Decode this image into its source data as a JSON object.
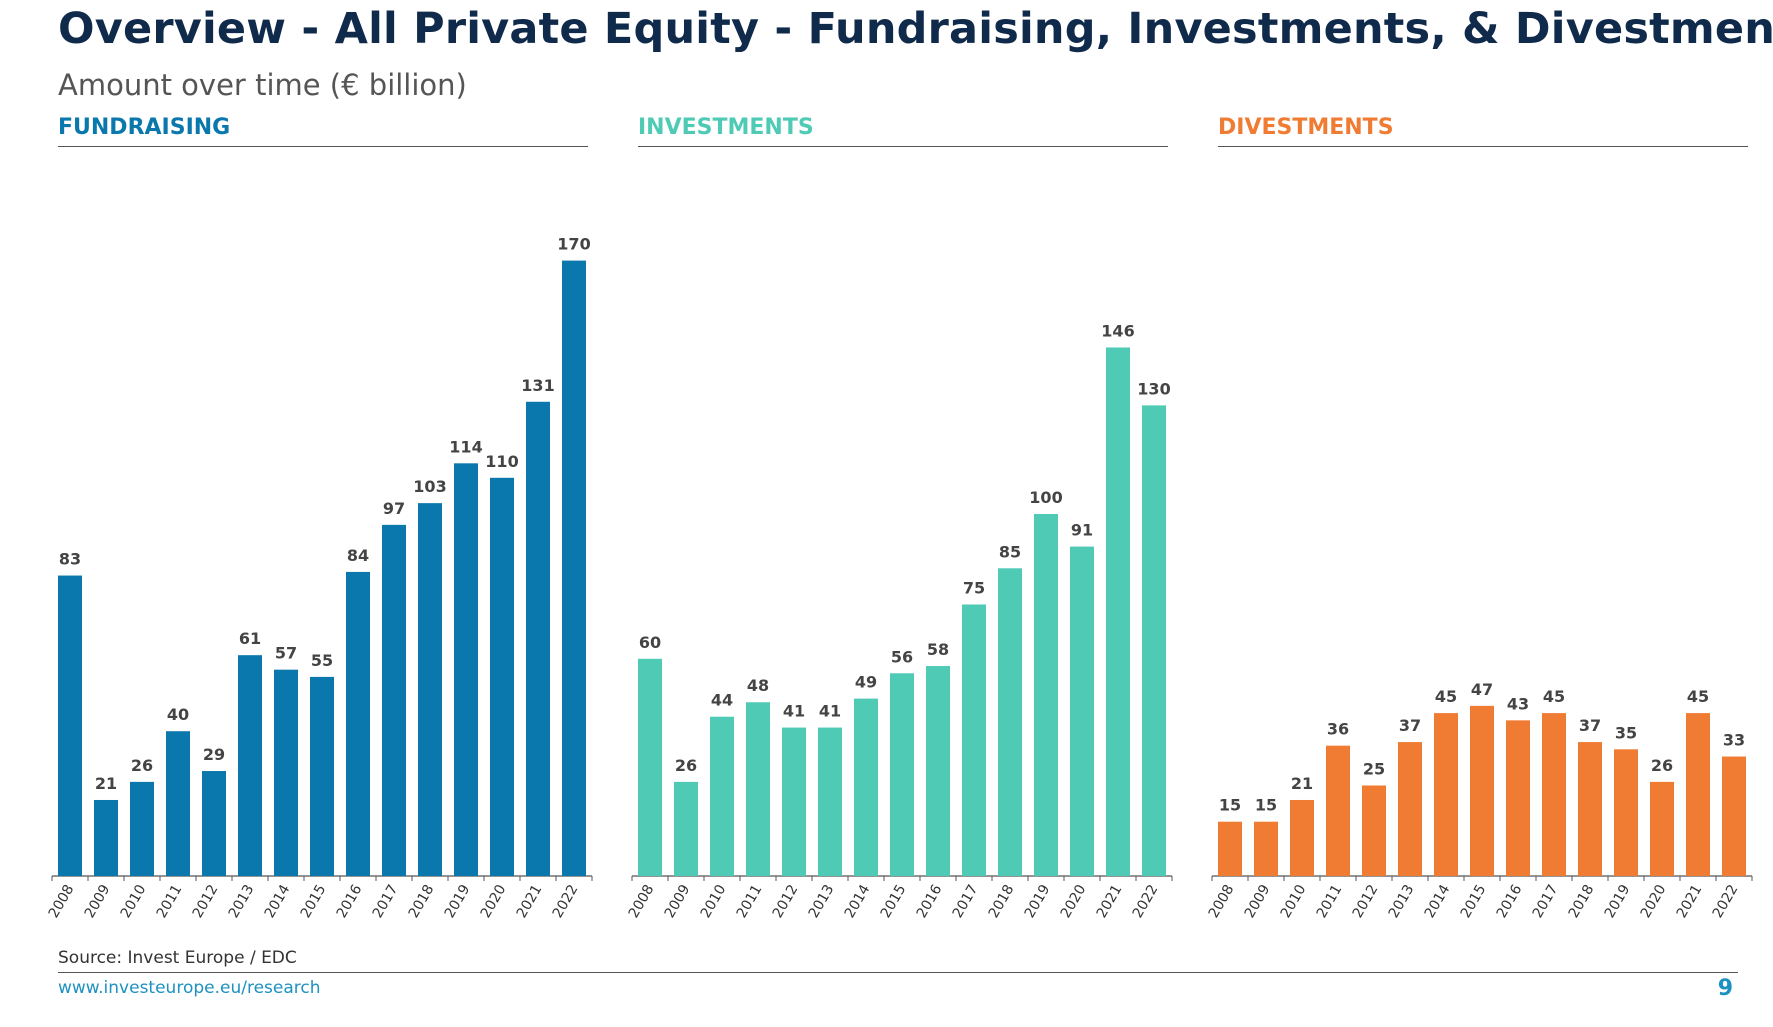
{
  "header": {
    "title": "Overview - All Private Equity - Fundraising, Investments, & Divestments",
    "subtitle": "Amount over time (€ billion)"
  },
  "chart_data": [
    {
      "type": "bar",
      "title": "FUNDRAISING",
      "color": "#0a78ad",
      "categories": [
        "2008",
        "2009",
        "2010",
        "2011",
        "2012",
        "2013",
        "2014",
        "2015",
        "2016",
        "2017",
        "2018",
        "2019",
        "2020",
        "2021",
        "2022"
      ],
      "values": [
        83,
        21,
        26,
        40,
        29,
        61,
        57,
        55,
        84,
        97,
        103,
        114,
        110,
        131,
        170
      ],
      "ylim": [
        0,
        170
      ]
    },
    {
      "type": "bar",
      "title": "INVESTMENTS",
      "color": "#4ecab5",
      "categories": [
        "2008",
        "2009",
        "2010",
        "2011",
        "2012",
        "2013",
        "2014",
        "2015",
        "2016",
        "2017",
        "2018",
        "2019",
        "2020",
        "2021",
        "2022"
      ],
      "values": [
        60,
        26,
        44,
        48,
        41,
        41,
        49,
        56,
        58,
        75,
        85,
        100,
        91,
        146,
        130
      ],
      "ylim": [
        0,
        170
      ]
    },
    {
      "type": "bar",
      "title": "DIVESTMENTS",
      "color": "#f07c34",
      "categories": [
        "2008",
        "2009",
        "2010",
        "2011",
        "2012",
        "2013",
        "2014",
        "2015",
        "2016",
        "2017",
        "2018",
        "2019",
        "2020",
        "2021",
        "2022"
      ],
      "values": [
        15,
        15,
        21,
        36,
        25,
        37,
        45,
        47,
        43,
        45,
        37,
        35,
        26,
        45,
        33
      ],
      "ylim": [
        0,
        170
      ]
    }
  ],
  "footer": {
    "source": "Source: Invest Europe / EDC",
    "url": "www.investeurope.eu/research",
    "page": "9"
  }
}
